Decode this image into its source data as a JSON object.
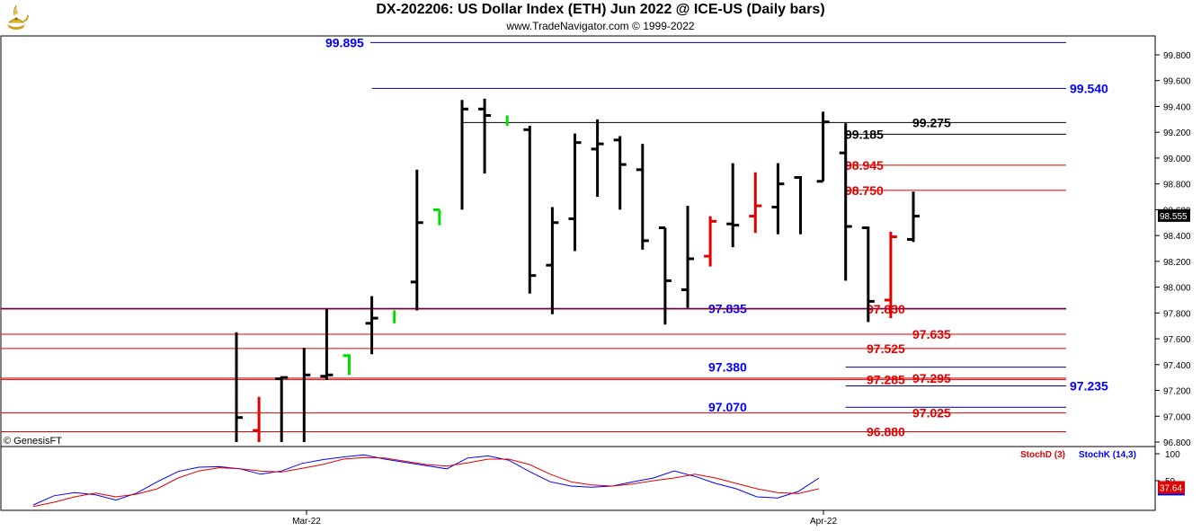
{
  "title": "DX-202206:  US Dollar Index (ETH) Jun 2022 @ ICE-US  (Daily bars)",
  "subtitle": "www.TradeNavigator.com © 1999-2022",
  "copyright": "© GenesisFT",
  "logo_icon": "genie-lamp-icon",
  "colors": {
    "blue": "#0000ff",
    "red": "#e00000",
    "green": "#00dd00",
    "black": "#000000",
    "navy": "#000080"
  },
  "chart_data": [
    {
      "type": "ohlc",
      "y_axis": {
        "min": 96.8,
        "max": 99.8,
        "side": "right",
        "ticks": [
          "99.800",
          "99.600",
          "99.400",
          "99.200",
          "99.000",
          "98.800",
          "98.600",
          "98.400",
          "98.200",
          "98.000",
          "97.800",
          "97.600",
          "97.400",
          "97.200",
          "97.000",
          "96.800"
        ]
      },
      "x_labels": [
        "Mar-22",
        "Apr-22"
      ],
      "last_price": "98.555",
      "bars": [
        {
          "h": 97.65,
          "l": 96.8,
          "o": null,
          "c": 96.99,
          "color": "black"
        },
        {
          "h": 97.15,
          "l": 96.8,
          "o": 96.89,
          "c": null,
          "color": "red"
        },
        {
          "h": 97.31,
          "l": 96.8,
          "o": 97.29,
          "c": 97.3,
          "color": "black"
        },
        {
          "h": 97.53,
          "l": 96.8,
          "o": null,
          "c": 97.32,
          "color": "black"
        },
        {
          "h": 97.83,
          "l": 97.28,
          "o": 97.31,
          "c": 97.32,
          "color": "black"
        },
        {
          "h": 97.48,
          "l": 97.32,
          "o": 97.47,
          "c": null,
          "color": "green"
        },
        {
          "h": 97.93,
          "l": 97.48,
          "o": 97.72,
          "c": 97.76,
          "color": "black"
        },
        {
          "h": 97.82,
          "l": 97.72,
          "o": null,
          "c": null,
          "color": "green"
        },
        {
          "h": 98.91,
          "l": 97.82,
          "o": 98.04,
          "c": 98.5,
          "color": "black"
        },
        {
          "h": 98.6,
          "l": 98.48,
          "o": 98.6,
          "c": null,
          "color": "green"
        },
        {
          "h": 99.45,
          "l": 98.6,
          "o": null,
          "c": 99.38,
          "color": "black"
        },
        {
          "h": 99.46,
          "l": 98.88,
          "o": 99.38,
          "c": 99.33,
          "color": "black"
        },
        {
          "h": 99.33,
          "l": 99.25,
          "o": null,
          "c": null,
          "color": "green"
        },
        {
          "h": 99.25,
          "l": 97.95,
          "o": 99.22,
          "c": 98.09,
          "color": "black"
        },
        {
          "h": 98.62,
          "l": 97.79,
          "o": 98.17,
          "c": 98.5,
          "color": "black"
        },
        {
          "h": 99.19,
          "l": 98.28,
          "o": 98.53,
          "c": 99.12,
          "color": "black"
        },
        {
          "h": 99.3,
          "l": 98.7,
          "o": 99.07,
          "c": 99.11,
          "color": "black"
        },
        {
          "h": 99.17,
          "l": 98.6,
          "o": 99.14,
          "c": 98.95,
          "color": "black"
        },
        {
          "h": 99.11,
          "l": 98.29,
          "o": 98.91,
          "c": 98.36,
          "color": "black"
        },
        {
          "h": 98.46,
          "l": 97.71,
          "o": 98.46,
          "c": 98.05,
          "color": "black"
        },
        {
          "h": 98.63,
          "l": 97.84,
          "o": 97.98,
          "c": 98.22,
          "color": "black"
        },
        {
          "h": 98.55,
          "l": 98.16,
          "o": 98.24,
          "c": 98.51,
          "color": "red"
        },
        {
          "h": 98.96,
          "l": 98.31,
          "o": 98.49,
          "c": 98.48,
          "color": "black"
        },
        {
          "h": 98.89,
          "l": 98.42,
          "o": 98.55,
          "c": 98.63,
          "color": "red"
        },
        {
          "h": 98.96,
          "l": 98.41,
          "o": 98.62,
          "c": 98.8,
          "color": "black"
        },
        {
          "h": 98.86,
          "l": 98.41,
          "o": 98.85,
          "c": null,
          "color": "black"
        },
        {
          "h": 99.36,
          "l": 98.82,
          "o": 98.82,
          "c": 99.28,
          "color": "black"
        },
        {
          "h": 99.27,
          "l": 98.05,
          "o": 99.04,
          "c": 98.47,
          "color": "black"
        },
        {
          "h": 98.47,
          "l": 97.73,
          "o": 98.46,
          "c": 97.89,
          "color": "black"
        },
        {
          "h": 98.43,
          "l": 97.76,
          "o": 97.9,
          "c": 98.39,
          "color": "red"
        },
        {
          "h": 98.74,
          "l": 98.35,
          "o": 98.37,
          "c": 98.55,
          "color": "black"
        }
      ],
      "levels": [
        {
          "price": 99.895,
          "label": "99.895",
          "color": "blue",
          "line_start_bar": null,
          "label_side": "left"
        },
        {
          "price": 99.54,
          "label": "99.540",
          "color": "blue",
          "line_start_bar": 6,
          "label_side": "right"
        },
        {
          "price": 99.275,
          "label": "99.275",
          "color": "black",
          "line_start_bar": 10,
          "label_side": "mid"
        },
        {
          "price": 99.185,
          "label": "99.185",
          "color": "black",
          "line_start_bar": 27,
          "label_side": "inner"
        },
        {
          "price": 98.945,
          "label": "98.945",
          "color": "red",
          "line_start_bar": 27,
          "label_side": "inner"
        },
        {
          "price": 98.75,
          "label": "98.750",
          "color": "red",
          "line_start_bar": 27,
          "label_side": "inner"
        },
        {
          "price": 97.835,
          "label": "97.835",
          "color": "blue",
          "line_start_bar": null,
          "label_side": "midleft"
        },
        {
          "price": 97.83,
          "label": "97.830",
          "color": "red",
          "line_start_bar": null,
          "label_side": "inner"
        },
        {
          "price": 97.635,
          "label": "97.635",
          "color": "red",
          "line_start_bar": null,
          "label_side": "mid"
        },
        {
          "price": 97.525,
          "label": "97.525",
          "color": "red",
          "line_start_bar": null,
          "label_side": "inner"
        },
        {
          "price": 97.38,
          "label": "97.380",
          "color": "blue",
          "line_start_bar": 27,
          "label_side": "midleft"
        },
        {
          "price": 97.295,
          "label": "97.295",
          "color": "red",
          "line_start_bar": null,
          "label_side": "mid"
        },
        {
          "price": 97.285,
          "label": "97.285",
          "color": "red",
          "line_start_bar": null,
          "label_side": "inner"
        },
        {
          "price": 97.235,
          "label": "97.235",
          "color": "blue",
          "line_start_bar": 27,
          "label_side": "right"
        },
        {
          "price": 97.07,
          "label": "97.070",
          "color": "blue",
          "line_start_bar": 27,
          "label_side": "midleft"
        },
        {
          "price": 97.025,
          "label": "97.025",
          "color": "red",
          "line_start_bar": null,
          "label_side": "mid"
        },
        {
          "price": 96.88,
          "label": "96.880",
          "color": "red",
          "line_start_bar": null,
          "label_side": "inner"
        }
      ]
    },
    {
      "type": "line",
      "name": "Stochastics",
      "y_axis": {
        "ticks": [
          "100",
          "50"
        ]
      },
      "last_value": "37.64",
      "legend": [
        {
          "name": "StochD (3)",
          "color": "red"
        },
        {
          "name": "StochK (14,3)",
          "color": "blue"
        }
      ],
      "series": [
        {
          "name": "StochK (14,3)",
          "values": [
            5,
            22,
            28,
            24,
            14,
            27,
            48,
            67,
            75,
            76,
            72,
            62,
            68,
            82,
            89,
            94,
            98,
            90,
            84,
            78,
            72,
            92,
            96,
            88,
            67,
            48,
            40,
            38,
            40,
            48,
            55,
            68,
            58,
            45,
            35,
            20,
            18,
            30,
            55
          ]
        },
        {
          "name": "StochD (3)",
          "values": [
            2,
            10,
            20,
            27,
            20,
            25,
            35,
            55,
            68,
            74,
            72,
            68,
            66,
            73,
            80,
            90,
            93,
            92,
            86,
            80,
            77,
            83,
            90,
            90,
            80,
            62,
            48,
            42,
            40,
            44,
            50,
            55,
            62,
            55,
            45,
            35,
            28,
            26,
            35
          ]
        }
      ]
    }
  ]
}
